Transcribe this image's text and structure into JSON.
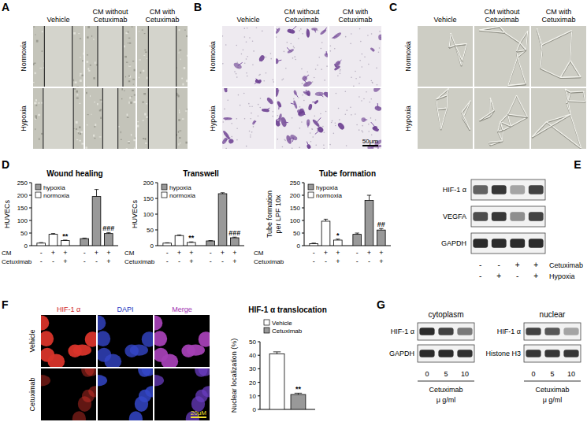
{
  "panels": {
    "A": {
      "label": "A",
      "columns": [
        [
          "Vehicle"
        ],
        [
          "CM without",
          "Cetuximab"
        ],
        [
          "CM with",
          "Cetuximab"
        ]
      ],
      "rows": [
        "Normoxia",
        "Hypoxia"
      ]
    },
    "B": {
      "label": "B",
      "columns": [
        [
          "Vehicle"
        ],
        [
          "CM without",
          "Cetuximab"
        ],
        [
          "CM with",
          "Cetuximab"
        ]
      ],
      "rows": [
        "Normoxia",
        "Hypoxia"
      ],
      "scale_bar": "50μm"
    },
    "C": {
      "label": "C",
      "columns": [
        [
          "Vehicle"
        ],
        [
          "CM without",
          "Cetuximab"
        ],
        [
          "CM with",
          "Cetuximab"
        ]
      ],
      "rows": [
        "Normoxia",
        "Hypoxia"
      ]
    },
    "D": {
      "label": "D"
    },
    "E": {
      "label": "E",
      "bands": [
        "HIF-1 α",
        "VEGFA",
        "GAPDH"
      ],
      "conditions": [
        {
          "name": "Cetuximab",
          "values": [
            "-",
            "-",
            "+",
            "+"
          ]
        },
        {
          "name": "Hypoxia",
          "values": [
            "-",
            "+",
            "-",
            "+"
          ]
        }
      ]
    },
    "F": {
      "label": "F",
      "columns": [
        "HIF-1 α",
        "DAPI",
        "Merge"
      ],
      "rows": [
        "Vehicle",
        "Cetuximab"
      ],
      "scale_bar": "20μM"
    },
    "G": {
      "label": "G",
      "blots": [
        {
          "title": "cytoplasm",
          "bands": [
            "HIF-1 α",
            "GAPDH"
          ]
        },
        {
          "title": "nuclear",
          "bands": [
            "HIF-1 α",
            "Histone H3"
          ]
        }
      ],
      "doses": [
        0,
        5,
        10
      ],
      "dose_label": "Cetuximab",
      "unit": "μ g/ml"
    }
  },
  "chart_data": [
    {
      "type": "bar",
      "title": "Wound healing",
      "y_label": [
        "HUVECs"
      ],
      "categories": [
        null,
        null,
        null,
        null,
        null,
        null
      ],
      "series": [
        {
          "name": "hypoxia",
          "color": "#999999",
          "values": [
            null,
            null,
            null,
            28,
            195,
            48
          ],
          "errors": [
            null,
            null,
            null,
            2,
            28,
            4
          ]
        },
        {
          "name": "normoxia",
          "color": "#ffffff",
          "values": [
            10,
            45,
            20,
            null,
            null,
            null
          ],
          "errors": [
            2,
            3,
            2,
            null,
            null,
            null
          ]
        }
      ],
      "ylim": [
        0,
        250
      ],
      "yticks": [
        0,
        50,
        100,
        150,
        200,
        250
      ],
      "legend": "upper left",
      "conditions": [
        {
          "name": "CM",
          "values": [
            "-",
            "+",
            "+",
            "-",
            "+",
            "+"
          ]
        },
        {
          "name": "Cetuximab",
          "values": [
            "-",
            "-",
            "+",
            "-",
            "-",
            "+"
          ]
        }
      ],
      "annotations": [
        {
          "text": "**",
          "index": 2
        },
        {
          "text": "###",
          "index": 5
        }
      ]
    },
    {
      "type": "bar",
      "title": "Transwell",
      "y_label": [
        "HUVECs"
      ],
      "categories": [
        null,
        null,
        null,
        null,
        null,
        null
      ],
      "series": [
        {
          "name": "hypoxia",
          "color": "#999999",
          "values": [
            null,
            null,
            null,
            15,
            165,
            25
          ],
          "errors": [
            null,
            null,
            null,
            1,
            3,
            2
          ]
        },
        {
          "name": "normoxia",
          "color": "#ffffff",
          "values": [
            8,
            32,
            10,
            null,
            null,
            null
          ],
          "errors": [
            1,
            2,
            2,
            null,
            null,
            null
          ]
        }
      ],
      "ylim": [
        0,
        200
      ],
      "yticks": [
        0,
        50,
        100,
        150,
        200
      ],
      "legend": "upper left",
      "conditions": [
        {
          "name": "CM",
          "values": [
            "-",
            "+",
            "+",
            "-",
            "+",
            "+"
          ]
        },
        {
          "name": "Cetuximab",
          "values": [
            "-",
            "-",
            "+",
            "-",
            "-",
            "+"
          ]
        }
      ],
      "annotations": [
        {
          "text": "**",
          "index": 2
        },
        {
          "text": "###",
          "index": 5
        }
      ]
    },
    {
      "type": "bar",
      "title": "Tube formation",
      "y_label": [
        "Tube formation",
        "per LPF 10x"
      ],
      "categories": [
        null,
        null,
        null,
        null,
        null,
        null
      ],
      "series": [
        {
          "name": "hypoxia",
          "color": "#999999",
          "values": [
            null,
            null,
            null,
            45,
            180,
            62
          ],
          "errors": [
            null,
            null,
            null,
            5,
            20,
            6
          ]
        },
        {
          "name": "normoxia",
          "color": "#ffffff",
          "values": [
            8,
            97,
            22,
            null,
            null,
            null
          ],
          "errors": [
            2,
            8,
            4,
            null,
            null,
            null
          ]
        }
      ],
      "ylim": [
        0,
        250
      ],
      "yticks": [
        0,
        50,
        100,
        150,
        200,
        250
      ],
      "legend": "upper left",
      "conditions": [
        {
          "name": "CM",
          "values": [
            "-",
            "+",
            "+",
            "-",
            "+",
            "+"
          ]
        },
        {
          "name": "Cetuximab",
          "values": [
            "-",
            "-",
            "+",
            "-",
            "-",
            "+"
          ]
        }
      ],
      "annotations": [
        {
          "text": "*",
          "index": 2
        },
        {
          "text": "##",
          "index": 5
        }
      ]
    },
    {
      "type": "bar",
      "title": "HIF-1 α translocation",
      "y_label": [
        "Nuclear localization (%)"
      ],
      "categories": [
        null,
        null
      ],
      "series": [
        {
          "name": "Vehicle",
          "color": "#ffffff",
          "values": [
            41,
            null
          ],
          "errors": [
            1.5,
            null
          ]
        },
        {
          "name": "Cetuximab",
          "color": "#999999",
          "values": [
            null,
            11
          ],
          "errors": [
            null,
            1
          ]
        }
      ],
      "ylim": [
        0,
        50
      ],
      "yticks": [
        0,
        10,
        20,
        30,
        40,
        50
      ],
      "legend": "top",
      "annotations": [
        {
          "text": "**",
          "index": 1
        }
      ]
    }
  ]
}
